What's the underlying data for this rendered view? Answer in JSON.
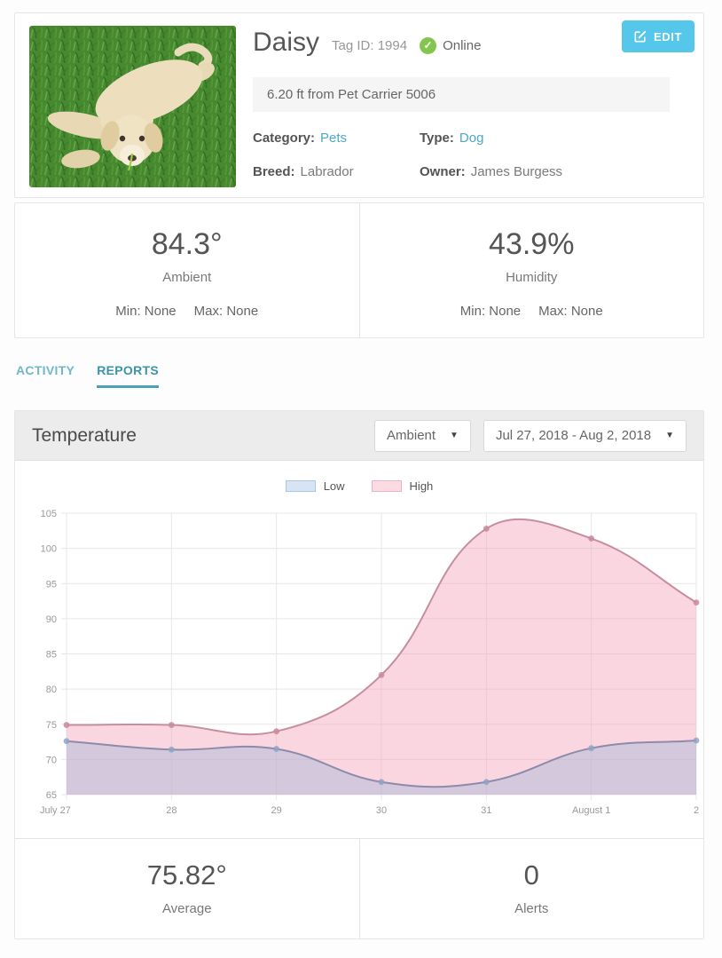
{
  "pet_card": {
    "name": "Daisy",
    "tag_label": "Tag ID: 1994",
    "status_label": "Online",
    "edit_label": "EDIT",
    "distance": "6.20 ft from Pet Carrier 5006",
    "fields": {
      "category_label": "Category:",
      "category_value": "Pets",
      "type_label": "Type:",
      "type_value": "Dog",
      "breed_label": "Breed:",
      "breed_value": "Labrador",
      "owner_label": "Owner:",
      "owner_value": "James Burgess"
    }
  },
  "stats": [
    {
      "value": "84.3°",
      "label": "Ambient",
      "min": "Min: None",
      "max": "Max: None"
    },
    {
      "value": "43.9%",
      "label": "Humidity",
      "min": "Min: None",
      "max": "Max: None"
    }
  ],
  "tabs": [
    {
      "label": "ACTIVITY",
      "active": false
    },
    {
      "label": "REPORTS",
      "active": true
    }
  ],
  "report_panel": {
    "title": "Temperature",
    "metric_dropdown": "Ambient",
    "range_dropdown": "Jul 27, 2018 - Aug 2, 2018",
    "footer": [
      {
        "value": "75.82°",
        "label": "Average"
      },
      {
        "value": "0",
        "label": "Alerts"
      }
    ]
  },
  "chart_data": {
    "type": "area",
    "title": "Temperature",
    "xlabel": "",
    "ylabel": "",
    "categories": [
      "July 27",
      "28",
      "29",
      "30",
      "31",
      "August 1",
      "2"
    ],
    "series": [
      {
        "name": "Low",
        "values": [
          72.6,
          71.4,
          71.5,
          66.8,
          66.8,
          71.6,
          72.7
        ],
        "line_color": "#8d8aaa",
        "point_color": "#8ea3c4",
        "fill_color": "rgba(166,183,216,0.45)",
        "legend_bg": "#d6e4f4",
        "legend_border": "#a9c8e6"
      },
      {
        "name": "High",
        "values": [
          74.9,
          74.9,
          74.0,
          82.0,
          102.8,
          101.4,
          92.3
        ],
        "line_color": "#c78da0",
        "point_color": "#c98a9e",
        "fill_color": "rgba(242,160,181,0.42)",
        "legend_bg": "#fbdce3",
        "legend_border": "#eeb2c2"
      }
    ],
    "ylim": [
      65,
      105
    ],
    "ytick_step": 5,
    "grid": true,
    "legend_position": "top",
    "curve_tension": 0.4
  },
  "colors": {
    "edit_button": "#54c7eb",
    "online_green": "#84c54e",
    "link_blue": "#4aa9c9",
    "tab_active": "#3b93aa",
    "grid_line": "#e7e7e7",
    "axis_text": "#999999"
  }
}
